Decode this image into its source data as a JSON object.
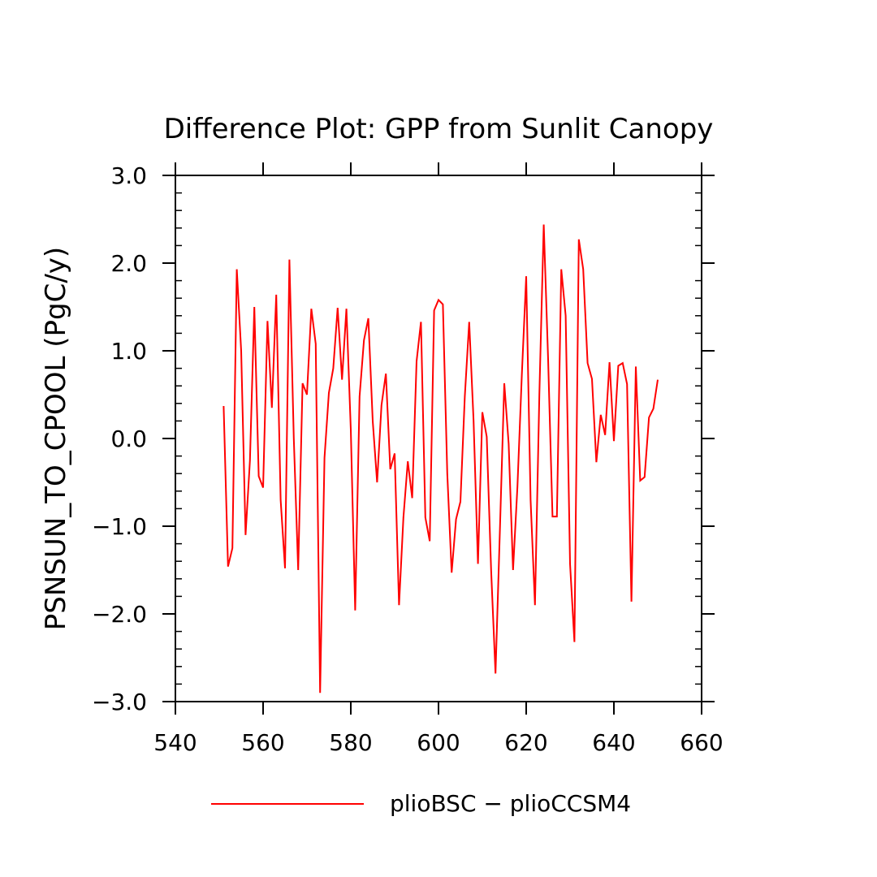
{
  "chart_data": {
    "type": "line",
    "title": "Difference Plot: GPP from Sunlit Canopy",
    "xlabel": "",
    "ylabel": "PSNSUN_TO_CPOOL  (PgC/y)",
    "xlim": [
      540,
      660
    ],
    "ylim": [
      -3.0,
      3.0
    ],
    "x_ticks": [
      540,
      560,
      580,
      600,
      620,
      640,
      660
    ],
    "x_tick_labels": [
      "540",
      "560",
      "580",
      "600",
      "620",
      "640",
      "660"
    ],
    "y_ticks": [
      -3.0,
      -2.0,
      -1.0,
      0.0,
      1.0,
      2.0,
      3.0
    ],
    "y_tick_labels": [
      "−3.0",
      "−2.0",
      "−1.0",
      "0.0",
      "1.0",
      "2.0",
      "3.0"
    ],
    "grid": false,
    "legend_position": "bottom",
    "series": [
      {
        "name": "plioBSC − plioCCSM4",
        "color": "#ff0000",
        "x": [
          551,
          552,
          553,
          554,
          555,
          556,
          557,
          558,
          559,
          560,
          561,
          562,
          563,
          564,
          565,
          566,
          567,
          568,
          569,
          570,
          571,
          572,
          573,
          574,
          575,
          576,
          577,
          578,
          579,
          580,
          581,
          582,
          583,
          584,
          585,
          586,
          587,
          588,
          589,
          590,
          591,
          592,
          593,
          594,
          595,
          596,
          597,
          598,
          599,
          600,
          601,
          602,
          603,
          604,
          605,
          606,
          607,
          608,
          609,
          610,
          611,
          612,
          613,
          614,
          615,
          616,
          617,
          618,
          619,
          620,
          621,
          622,
          623,
          624,
          625,
          626,
          627,
          628,
          629,
          630,
          631,
          632,
          633,
          634,
          635,
          636,
          637,
          638,
          639,
          640,
          641,
          642,
          643,
          644,
          645,
          646,
          647,
          648,
          649,
          650
        ],
        "y": [
          0.37,
          -1.46,
          -1.25,
          1.93,
          1.0,
          -1.1,
          -0.25,
          1.5,
          -0.43,
          -0.56,
          1.34,
          0.35,
          1.64,
          -0.7,
          -1.48,
          2.04,
          0.0,
          -1.5,
          0.63,
          0.5,
          1.48,
          1.08,
          -2.9,
          -0.22,
          0.52,
          0.8,
          1.49,
          0.67,
          1.48,
          0.1,
          -1.96,
          0.48,
          1.12,
          1.37,
          0.2,
          -0.5,
          0.38,
          0.74,
          -0.35,
          -0.17,
          -1.9,
          -0.9,
          -0.26,
          -0.68,
          0.88,
          1.33,
          -0.9,
          -1.17,
          1.46,
          1.58,
          1.53,
          -0.4,
          -1.53,
          -0.92,
          -0.72,
          0.48,
          1.33,
          0.2,
          -1.43,
          0.3,
          0.02,
          -1.5,
          -2.68,
          -1.05,
          0.63,
          -0.06,
          -1.5,
          -0.55,
          0.72,
          1.85,
          -0.7,
          -1.9,
          0.5,
          2.44,
          0.9,
          -0.89,
          -0.89,
          1.93,
          1.4,
          -1.43,
          -2.32,
          2.27,
          1.93,
          0.86,
          0.68,
          -0.27,
          0.27,
          0.04,
          0.87,
          -0.03,
          0.83,
          0.86,
          0.62,
          -1.86,
          0.82,
          -0.48,
          -0.44,
          0.24,
          0.34,
          0.67
        ]
      }
    ]
  }
}
